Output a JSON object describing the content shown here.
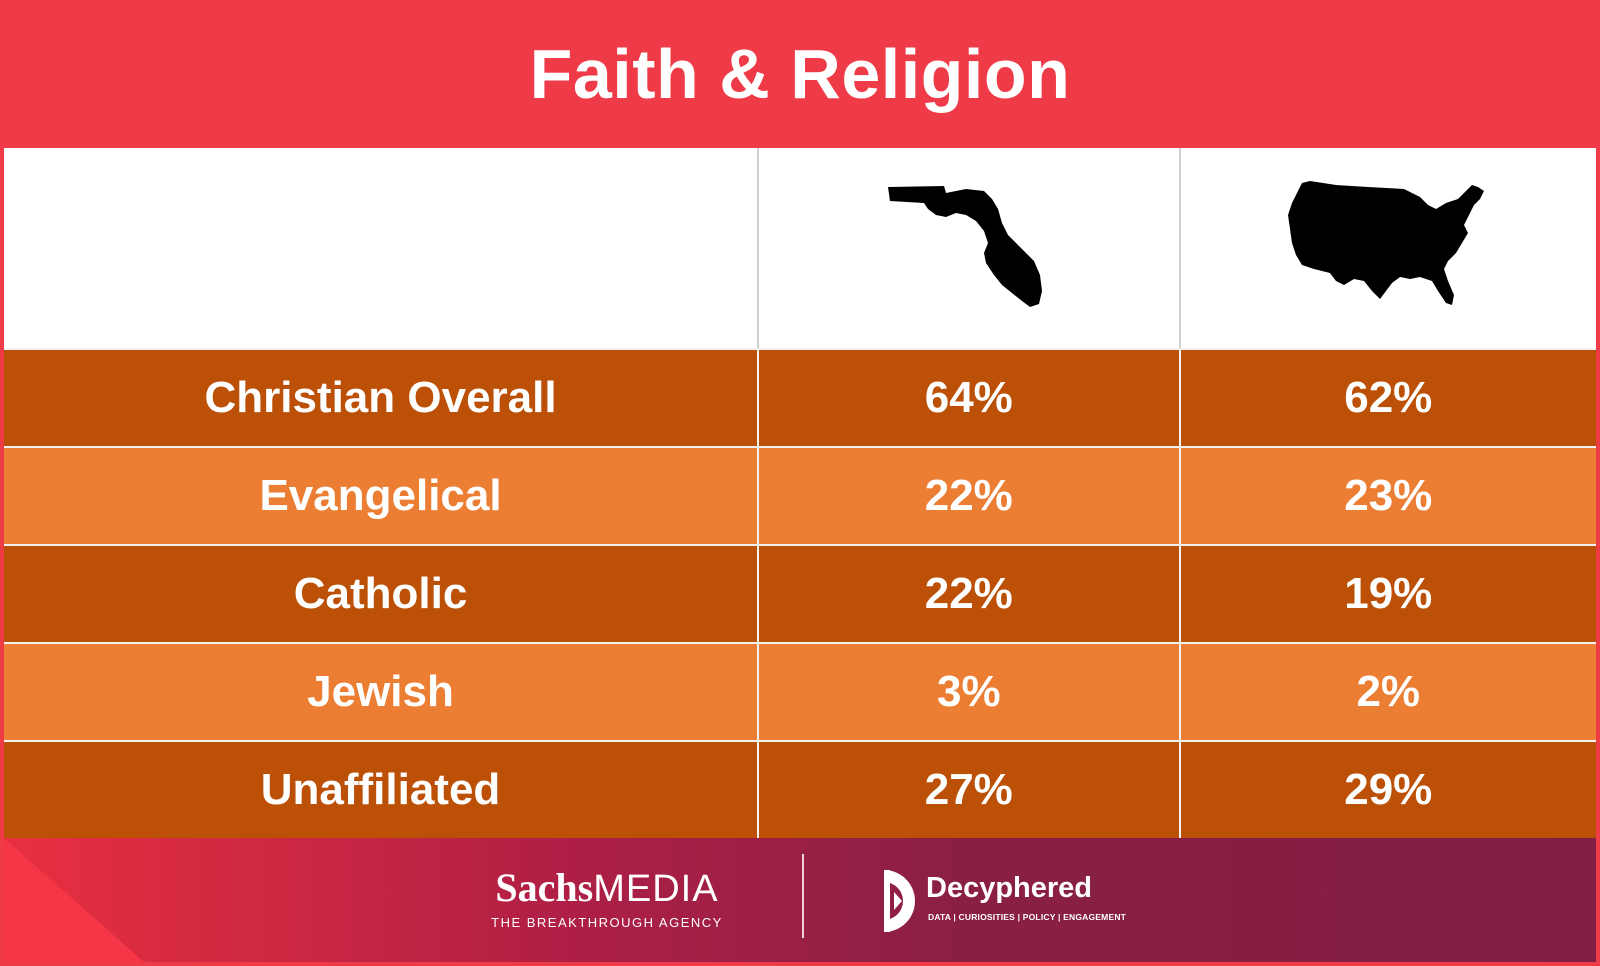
{
  "title": "Faith & Religion",
  "header_icons": [
    "florida-silhouette-icon",
    "usa-silhouette-icon"
  ],
  "colors": {
    "banner": "#ef3a47",
    "row_dark": "#bb5006",
    "row_light": "#ec7e34",
    "text": "#ffffff"
  },
  "chart_data": {
    "type": "table",
    "columns": [
      "Florida",
      "United States"
    ],
    "rows": [
      {
        "label": "Christian Overall",
        "values": [
          "64%",
          "62%"
        ]
      },
      {
        "label": "Evangelical",
        "values": [
          "22%",
          "23%"
        ]
      },
      {
        "label": "Catholic",
        "values": [
          "22%",
          "19%"
        ]
      },
      {
        "label": "Jewish",
        "values": [
          "3%",
          "2%"
        ]
      },
      {
        "label": "Unaffiliated",
        "values": [
          "27%",
          "29%"
        ]
      }
    ]
  },
  "footer": {
    "sachs_name": "Sachs",
    "sachs_media": "MEDIA",
    "sachs_tagline": "THE BREAKTHROUGH AGENCY",
    "decyphered_name": "Decyphered",
    "decyphered_tagline": "DATA | CURIOSITIES | POLICY | ENGAGEMENT"
  }
}
